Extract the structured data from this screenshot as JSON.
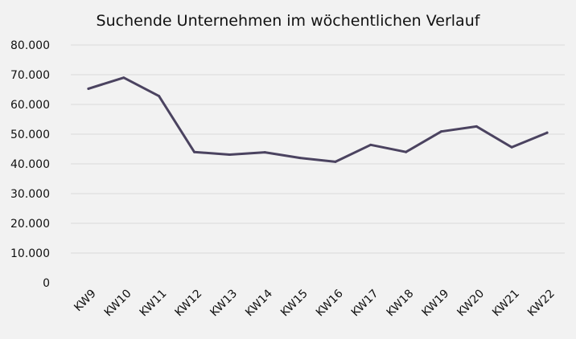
{
  "chart_data": {
    "type": "line",
    "title": "Suchende Unternehmen im wöchentlichen Verlauf",
    "xlabel": "",
    "ylabel": "",
    "categories": [
      "KW9",
      "KW10",
      "KW11",
      "KW12",
      "KW13",
      "KW14",
      "KW15",
      "KW16",
      "KW17",
      "KW18",
      "KW19",
      "KW20",
      "KW21",
      "KW22"
    ],
    "series": [
      {
        "name": "Suchende Unternehmen",
        "values": [
          65300,
          69000,
          62800,
          44000,
          43100,
          43900,
          42000,
          40700,
          46400,
          44000,
          50900,
          52600,
          45600,
          50500
        ]
      }
    ],
    "ylim": [
      0,
      80000
    ],
    "yticks": [
      0,
      10000,
      20000,
      30000,
      40000,
      50000,
      60000,
      70000,
      80000
    ],
    "ytick_labels": [
      "0",
      "10.000",
      "20.000",
      "30.000",
      "40.000",
      "50.000",
      "60.000",
      "70.000",
      "80.000"
    ],
    "grid": true,
    "line_color": "#4b4360"
  }
}
